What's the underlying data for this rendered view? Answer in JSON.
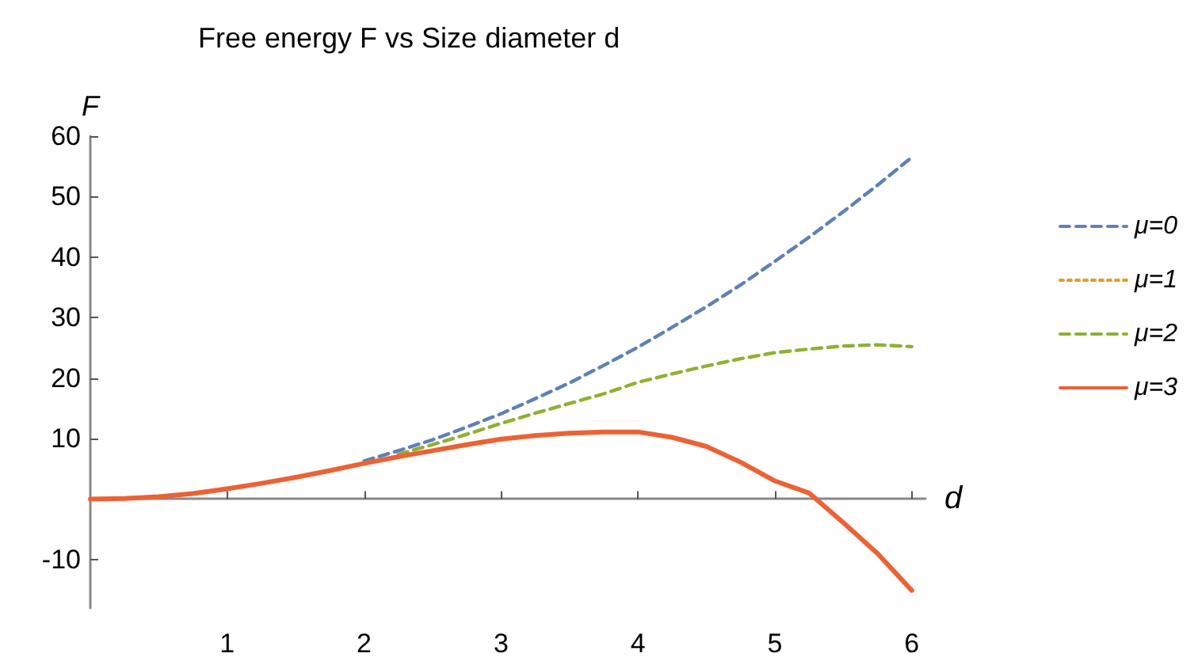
{
  "chart_data": {
    "type": "line",
    "title": "Free energy F vs Size diameter d",
    "xlabel": "d",
    "ylabel": "F",
    "x": [
      0,
      0.25,
      0.5,
      0.75,
      1,
      1.25,
      1.5,
      1.75,
      2,
      2.25,
      2.5,
      2.75,
      3,
      3.25,
      3.5,
      3.75,
      4,
      4.25,
      4.5,
      4.75,
      5,
      5.25,
      5.5,
      5.75,
      6
    ],
    "series": [
      {
        "name": "μ=0",
        "color": "#5e81b5",
        "line_style": "dashed",
        "values": [
          null,
          null,
          null,
          null,
          null,
          null,
          null,
          null,
          6.3,
          8.0,
          9.8,
          11.9,
          14.1,
          16.6,
          19.2,
          22.1,
          25.1,
          28.4,
          31.8,
          35.4,
          39.3,
          43.3,
          47.5,
          51.9,
          56.5
        ]
      },
      {
        "name": "μ=1",
        "color": "#e19c24",
        "line_style": "dotted",
        "values": [
          null,
          null,
          null,
          null,
          null,
          null,
          null,
          null,
          null,
          null,
          null,
          null,
          null,
          null,
          null,
          null,
          null,
          null,
          null,
          null,
          null,
          null,
          null,
          null,
          null
        ]
      },
      {
        "name": "μ=2",
        "color": "#8fb032",
        "line_style": "dashed",
        "values": [
          null,
          null,
          null,
          null,
          null,
          null,
          null,
          null,
          null,
          7.4,
          9.0,
          10.7,
          12.5,
          14.2,
          15.8,
          17.4,
          19.3,
          20.7,
          22.0,
          23.2,
          24.2,
          24.8,
          25.3,
          25.5,
          25.2
        ]
      },
      {
        "name": "μ=3",
        "color": "#eb6235",
        "line_style": "solid",
        "values": [
          0,
          0.1,
          0.4,
          0.9,
          1.7,
          2.6,
          3.6,
          4.7,
          5.9,
          7.0,
          8.0,
          9.0,
          9.9,
          10.5,
          10.9,
          11.1,
          11.1,
          10.2,
          8.7,
          6.1,
          3.0,
          1.0,
          -3.9,
          -9.0,
          -15.1
        ]
      }
    ],
    "xlim": [
      0,
      6.1
    ],
    "xticks": [
      1,
      2,
      3,
      4,
      5,
      6
    ],
    "ylim": [
      -18,
      60
    ],
    "yticks": [
      -10,
      10,
      20,
      30,
      40,
      50,
      60
    ],
    "grid": false,
    "legend": "right",
    "marker": "none"
  }
}
